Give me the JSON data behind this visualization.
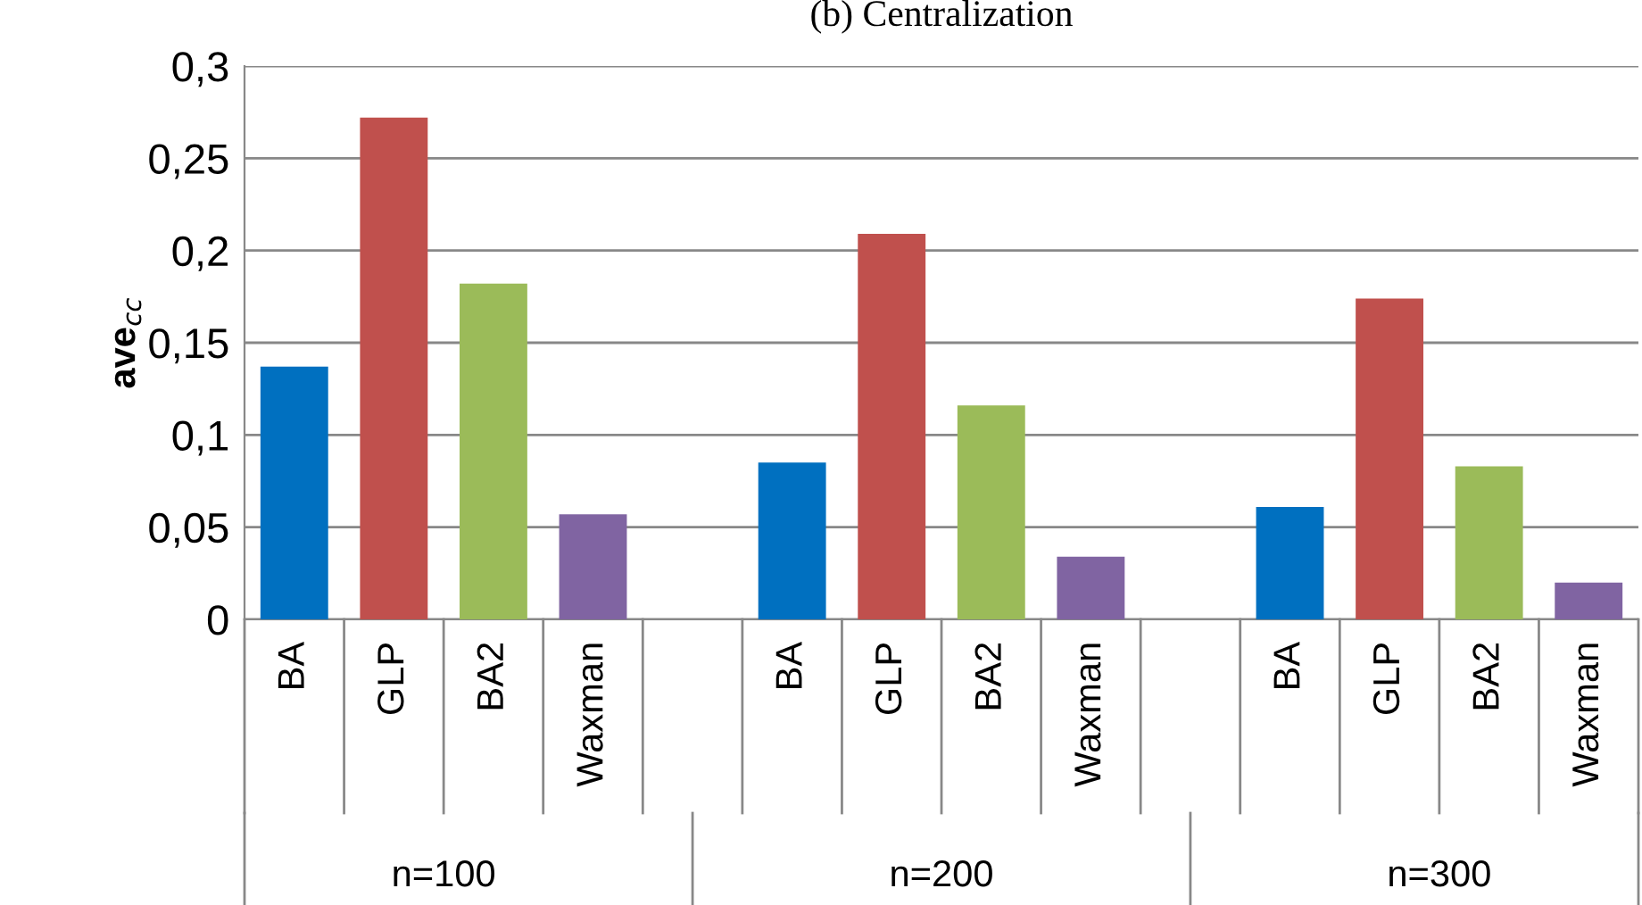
{
  "chart_data": {
    "type": "bar",
    "title": "(b) Centralization",
    "ylabel": "ave$_{cc}$",
    "categories": [
      "BA",
      "GLP",
      "BA2",
      "Waxman",
      null,
      "BA",
      "GLP",
      "BA2",
      "Waxman",
      null,
      "BA",
      "GLP",
      "BA2",
      "Waxman"
    ],
    "values": [
      0.137,
      0.272,
      0.182,
      0.057,
      null,
      0.085,
      0.209,
      0.116,
      0.034,
      null,
      0.061,
      0.174,
      0.083,
      0.02
    ],
    "colors": [
      "#0070c0",
      "#c0504d",
      "#9bbb59",
      "#8064a2",
      null,
      "#0070c0",
      "#c0504d",
      "#9bbb59",
      "#8064a2",
      null,
      "#0070c0",
      "#c0504d",
      "#9bbb59",
      "#8064a2"
    ],
    "annotations": [
      "n=100",
      "n=200",
      "n=300"
    ],
    "ylim": [
      0,
      0.3
    ],
    "yticks": [
      0,
      {
        "value": 0.05,
        "label": "0,05"
      },
      {
        "value": 0.1,
        "label": "0,1"
      },
      {
        "value": 0.15,
        "label": "0,15"
      },
      {
        "value": 0.2,
        "label": "0,2"
      },
      {
        "value": 0.25,
        "label": "0,25"
      },
      {
        "value": 0.3,
        "label": "0,3"
      }
    ],
    "grid": "y"
  }
}
